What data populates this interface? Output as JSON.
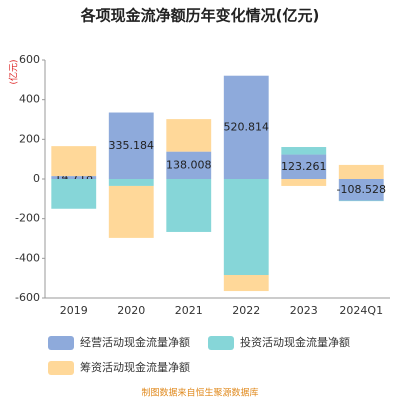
{
  "chart_data": {
    "type": "stacked-bar",
    "title": "各项现金流净额历年变化情况(亿元)",
    "y_label": "(亿元)",
    "source": "制图数据来自恒生聚源数据库",
    "categories": [
      "2019",
      "2020",
      "2021",
      "2022",
      "2023",
      "2024Q1"
    ],
    "series": [
      {
        "name": "经营活动现金流量净额",
        "color": "#8eaadb",
        "values": [
          14.718,
          335.184,
          138.008,
          520.814,
          123.261,
          -108.528
        ],
        "labels": true
      },
      {
        "name": "投资活动现金流量净额",
        "color": "#86d6d8",
        "values": [
          -150,
          -35,
          -267,
          -484,
          38,
          -3
        ]
      },
      {
        "name": "筹资活动现金流量净额",
        "color": "#ffd899",
        "values": [
          151,
          -262,
          164,
          -81,
          -35,
          71
        ]
      }
    ],
    "ylim": [
      -600,
      600
    ],
    "yticks": [
      -600,
      -400,
      -200,
      0,
      200,
      400,
      600
    ]
  }
}
